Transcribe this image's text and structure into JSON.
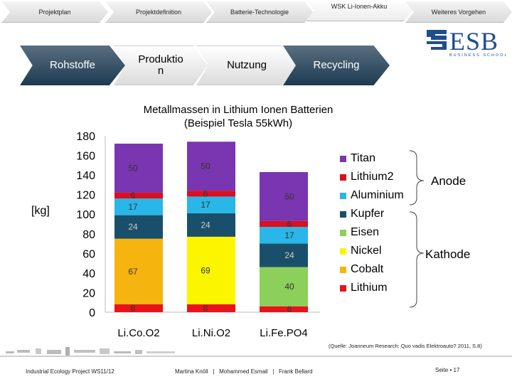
{
  "nav": {
    "tabs": [
      {
        "label": "Projektplan"
      },
      {
        "label": "Projektdefinition"
      },
      {
        "label": "Batterie-Technologie"
      },
      {
        "label": "WSK Li-Ionen-Akku"
      },
      {
        "label": "Weiteres Vorgehen"
      }
    ]
  },
  "flow": {
    "steps": [
      {
        "label": "Rohstoffe"
      },
      {
        "label": "Produktio n"
      },
      {
        "label": "Nutzung"
      },
      {
        "label": "Recycling"
      }
    ]
  },
  "logo": {
    "name": "ESB",
    "subtitle": "BUSINESS SCHOOL",
    "color": "#1f4e8c"
  },
  "chart_data": {
    "type": "bar",
    "stacked": true,
    "title": "Metallmassen in Lithium Ionen Batterien (Beispiel Tesla 55kWh)",
    "title_lines": [
      "Metallmassen in Lithium Ionen Batterien",
      "(Beispiel Tesla 55kWh)"
    ],
    "ylabel": "[kg]",
    "ylim": [
      0,
      180
    ],
    "yticks": [
      0,
      20,
      40,
      60,
      80,
      100,
      120,
      140,
      160,
      180
    ],
    "categories": [
      "Li.Co.O2",
      "Li.Ni.O2",
      "Li.Fe.PO4"
    ],
    "series": [
      {
        "name": "Lithium",
        "color": "#e8141b",
        "values": [
          8,
          8,
          6
        ],
        "labels": [
          "8",
          "8",
          "6"
        ]
      },
      {
        "name": "Cobalt",
        "color": "#f6b40e",
        "values": [
          67,
          0,
          0
        ],
        "labels": [
          "67",
          "",
          ""
        ]
      },
      {
        "name": "Nickel",
        "color": "#fbf500",
        "values": [
          0,
          69,
          0
        ],
        "labels": [
          "",
          "69",
          ""
        ]
      },
      {
        "name": "Eisen",
        "color": "#8ccf5a",
        "values": [
          0,
          0,
          40
        ],
        "labels": [
          "",
          "",
          "40"
        ]
      },
      {
        "name": "Kupfer",
        "color": "#1a4f6b",
        "values": [
          24,
          24,
          24
        ],
        "labels": [
          "24",
          "24",
          "24"
        ]
      },
      {
        "name": "Aluminium",
        "color": "#29b6e8",
        "values": [
          17,
          17,
          17
        ],
        "labels": [
          "17",
          "17",
          "17"
        ]
      },
      {
        "name": "Lithium2",
        "color": "#d9101e",
        "values": [
          6,
          6,
          6
        ],
        "labels": [
          "6",
          "6",
          "6"
        ]
      },
      {
        "name": "Titan",
        "color": "#7a35b0",
        "values": [
          50,
          50,
          50
        ],
        "labels": [
          "50",
          "50",
          "50"
        ]
      }
    ],
    "legend_order": [
      "Titan",
      "Lithium2",
      "Aluminium",
      "Kupfer",
      "Eisen",
      "Nickel",
      "Cobalt",
      "Lithium"
    ],
    "annotations": {
      "anode": "Anode",
      "kathode": "Kathode"
    }
  },
  "source": "(Quelle: Joanneum Research: Quo vadis Elektroauto? 2011, S.8)",
  "footer": {
    "project": "Industrial Ecology Project WS11/12",
    "authors": "Martina Knöll   |   Mohammed Esmail   |   Frank Bellard",
    "page": "Seite ▪ 17"
  }
}
